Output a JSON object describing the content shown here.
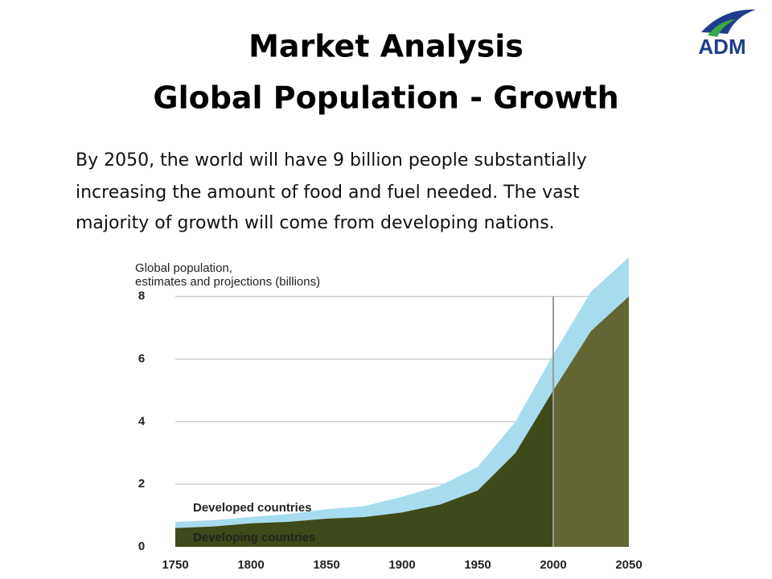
{
  "logo": "ADM",
  "title": [
    "Market Analysis",
    "Global Population - Growth"
  ],
  "body": [
    "By 2050, the world will have 9 billion people substantially",
    "increasing the amount of food and fuel needed.  The vast",
    "majority of growth will come from developing nations."
  ],
  "chart_data": {
    "type": "area",
    "stacked": true,
    "title": [
      "Global population,",
      "estimates and projections (billions)"
    ],
    "x": [
      1750,
      1775,
      1800,
      1825,
      1850,
      1875,
      1900,
      1925,
      1950,
      1975,
      2000,
      2025,
      2050
    ],
    "series": [
      {
        "name": "Developing countries",
        "color": "#3f4a1a",
        "projection_color": "#636633",
        "values": [
          0.6,
          0.65,
          0.75,
          0.8,
          0.9,
          0.95,
          1.1,
          1.35,
          1.8,
          3.0,
          5.0,
          6.9,
          8.0
        ]
      },
      {
        "name": "Developed countries",
        "color": "#a7dcee",
        "values": [
          0.2,
          0.2,
          0.2,
          0.25,
          0.3,
          0.35,
          0.5,
          0.6,
          0.75,
          1.0,
          1.15,
          1.25,
          1.25
        ]
      }
    ],
    "projection_from": 2000,
    "xlim": [
      1750,
      2050
    ],
    "xticks": [
      1750,
      1800,
      1850,
      1900,
      1950,
      2000,
      2050
    ],
    "ylim": [
      0,
      9.25
    ],
    "yticks": [
      0,
      2,
      4,
      6,
      8
    ],
    "grid": true
  }
}
